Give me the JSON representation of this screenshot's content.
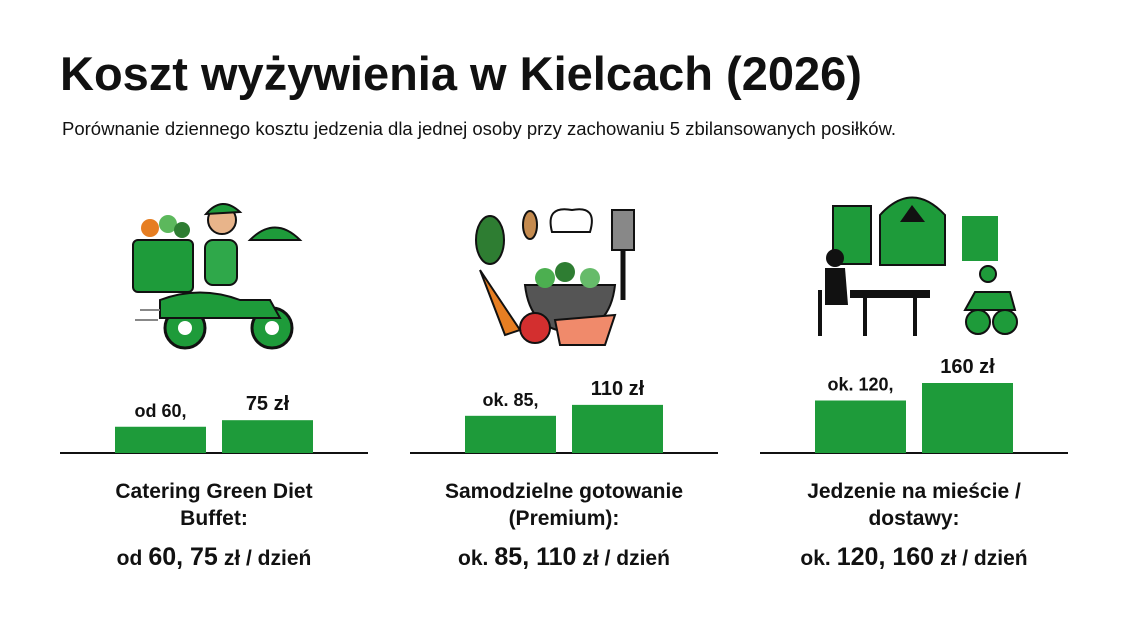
{
  "header": {
    "title": "Koszt wyżywienia w Kielcach (2026)",
    "subtitle": "Porównanie dziennego kosztu jedzenia dla jednej osoby przy zachowaniu 5 zbilansowanych posiłków."
  },
  "chart_data": [
    {
      "type": "bar",
      "color": "#1e9b3a",
      "values": [
        60,
        75
      ],
      "value_labels": [
        "od 60,",
        "75 zł"
      ],
      "caption": [
        "Catering Green Diet",
        "Buffet:"
      ],
      "summary": {
        "prefix": "od",
        "amount": "60, 75",
        "suffix": "zł / dzień"
      }
    },
    {
      "type": "bar",
      "color": "#1e9b3a",
      "values": [
        85,
        110
      ],
      "value_labels": [
        "ok. 85,",
        "110 zł"
      ],
      "caption": [
        "Samodzielne gotowanie",
        "(Premium):"
      ],
      "summary": {
        "prefix": "ok.",
        "amount": "85, 110",
        "suffix": "zł / dzień"
      }
    },
    {
      "type": "bar",
      "color": "#1e9b3a",
      "values": [
        120,
        160
      ],
      "value_labels": [
        "ok. 120,",
        "160 zł"
      ],
      "caption": [
        "Jedzenie na mieście /",
        "dostawy:"
      ],
      "summary": {
        "prefix": "ok.",
        "amount": "120, 160",
        "suffix": "zł / dzień"
      }
    }
  ]
}
